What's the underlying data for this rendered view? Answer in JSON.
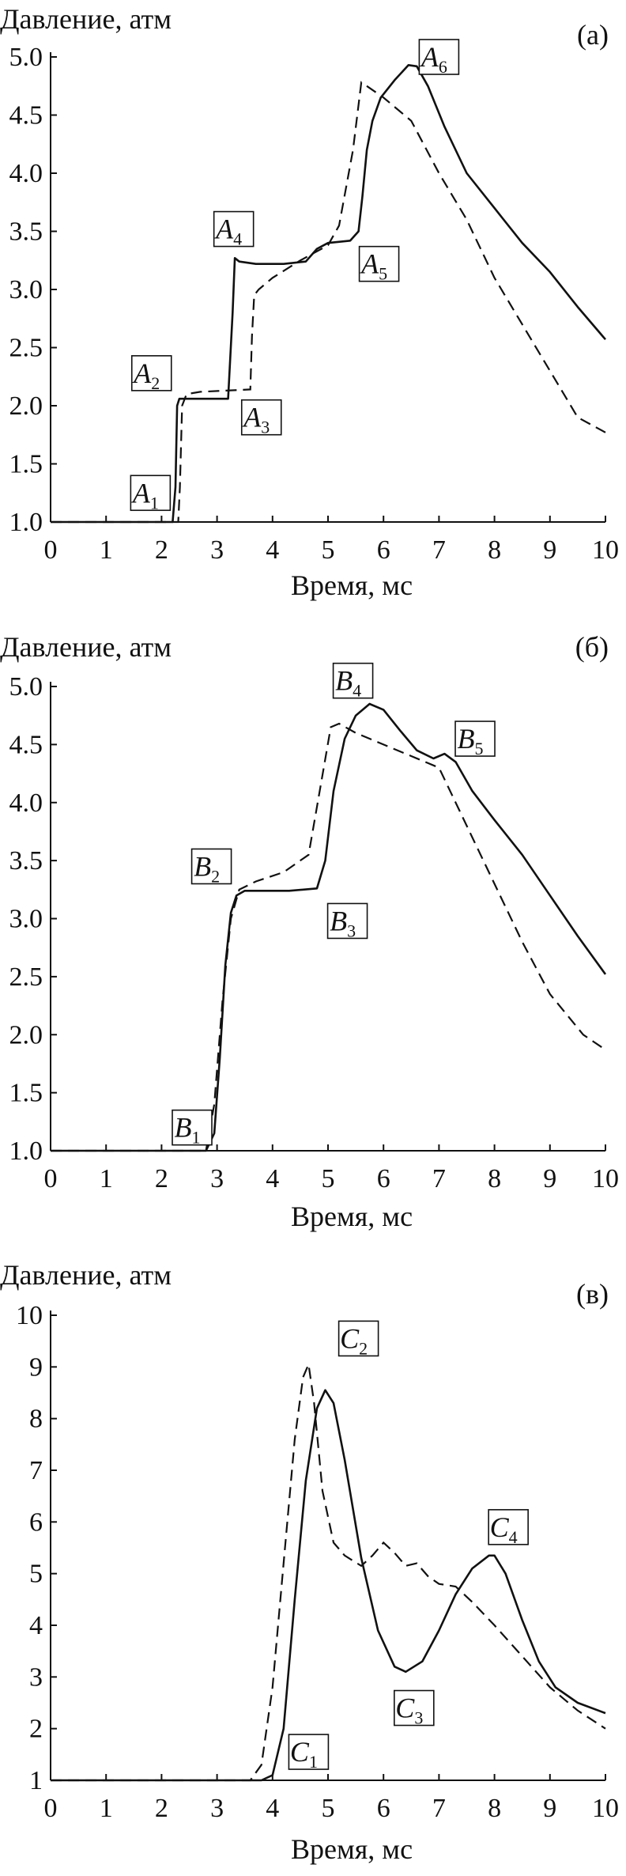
{
  "chart_data": [
    {
      "type": "line",
      "panel_tag": "(а)",
      "ylabel": "Давление, атм",
      "xlabel": "Время, мс",
      "xlim": [
        0,
        10
      ],
      "ylim": [
        1.0,
        5.0
      ],
      "xticks": [
        "0",
        "1",
        "2",
        "3",
        "4",
        "5",
        "6",
        "7",
        "8",
        "9",
        "10"
      ],
      "yticks": [
        "1.0",
        "1.5",
        "2.0",
        "2.5",
        "3.0",
        "3.5",
        "4.0",
        "4.5",
        "5.0"
      ],
      "ytick_values": [
        1.0,
        1.5,
        2.0,
        2.5,
        3.0,
        3.5,
        4.0,
        4.5,
        5.0
      ],
      "series": [
        {
          "style": "solid",
          "x": [
            0,
            2.2,
            2.25,
            2.28,
            2.32,
            2.5,
            3.2,
            3.28,
            3.32,
            3.4,
            3.7,
            4.2,
            4.6,
            4.8,
            5.0,
            5.4,
            5.55,
            5.62,
            5.7,
            5.8,
            5.95,
            6.2,
            6.45,
            6.6,
            6.8,
            7.1,
            7.5,
            8.0,
            8.5,
            9.0,
            9.5,
            10.0
          ],
          "y": [
            1.0,
            1.0,
            1.3,
            2.0,
            2.06,
            2.06,
            2.06,
            2.8,
            3.27,
            3.24,
            3.22,
            3.22,
            3.24,
            3.35,
            3.4,
            3.42,
            3.5,
            3.8,
            4.2,
            4.45,
            4.65,
            4.8,
            4.93,
            4.92,
            4.75,
            4.4,
            4.0,
            3.7,
            3.4,
            3.15,
            2.85,
            2.57
          ]
        },
        {
          "style": "dashed",
          "x": [
            0,
            2.3,
            2.33,
            2.37,
            2.45,
            2.7,
            3.6,
            3.63,
            3.67,
            3.75,
            4.0,
            4.5,
            5.0,
            5.2,
            5.45,
            5.6,
            5.7,
            6.0,
            6.5,
            7.0,
            7.5,
            8.0,
            8.5,
            9.0,
            9.5,
            10.0
          ],
          "y": [
            1.0,
            1.0,
            1.3,
            2.0,
            2.1,
            2.12,
            2.14,
            2.6,
            2.95,
            3.0,
            3.1,
            3.25,
            3.38,
            3.55,
            4.2,
            4.78,
            4.75,
            4.65,
            4.45,
            4.0,
            3.6,
            3.1,
            2.7,
            2.3,
            1.9,
            1.77
          ]
        }
      ],
      "point_labels": [
        {
          "letter": "A",
          "sub": "1",
          "x": 1.8,
          "y": 1.25
        },
        {
          "letter": "A",
          "sub": "2",
          "x": 1.82,
          "y": 2.28
        },
        {
          "letter": "A",
          "sub": "3",
          "x": 3.8,
          "y": 1.9
        },
        {
          "letter": "A",
          "sub": "4",
          "x": 3.3,
          "y": 3.52
        },
        {
          "letter": "A",
          "sub": "5",
          "x": 5.92,
          "y": 3.22
        },
        {
          "letter": "A",
          "sub": "6",
          "x": 7.0,
          "y": 5.0
        }
      ]
    },
    {
      "type": "line",
      "panel_tag": "(б)",
      "ylabel": "Давление, атм",
      "xlabel": "Время, мс",
      "xlim": [
        0,
        10
      ],
      "ylim": [
        1.0,
        5.0
      ],
      "xticks": [
        "0",
        "1",
        "2",
        "3",
        "4",
        "5",
        "6",
        "7",
        "8",
        "9",
        "10"
      ],
      "yticks": [
        "1.0",
        "1.5",
        "2.0",
        "2.5",
        "3.0",
        "3.5",
        "4.0",
        "4.5",
        "5.0"
      ],
      "ytick_values": [
        1.0,
        1.5,
        2.0,
        2.5,
        3.0,
        3.5,
        4.0,
        4.5,
        5.0
      ],
      "series": [
        {
          "style": "solid",
          "x": [
            0,
            2.8,
            2.95,
            3.05,
            3.15,
            3.25,
            3.35,
            3.5,
            3.8,
            4.3,
            4.8,
            4.95,
            5.1,
            5.3,
            5.5,
            5.75,
            6.0,
            6.3,
            6.6,
            6.9,
            7.1,
            7.3,
            7.6,
            8.0,
            8.5,
            9.0,
            9.5,
            10.0
          ],
          "y": [
            1.0,
            1.0,
            1.15,
            1.8,
            2.6,
            3.05,
            3.2,
            3.24,
            3.24,
            3.24,
            3.26,
            3.5,
            4.1,
            4.55,
            4.75,
            4.85,
            4.8,
            4.62,
            4.45,
            4.38,
            4.42,
            4.35,
            4.1,
            3.85,
            3.55,
            3.2,
            2.85,
            2.52
          ]
        },
        {
          "style": "dashed",
          "x": [
            0,
            2.8,
            2.95,
            3.1,
            3.25,
            3.4,
            3.7,
            4.2,
            4.65,
            4.85,
            5.05,
            5.2,
            5.5,
            6.0,
            6.5,
            7.0,
            7.5,
            8.0,
            8.5,
            9.0,
            9.6,
            10.0
          ],
          "y": [
            1.0,
            1.0,
            1.4,
            2.3,
            3.0,
            3.25,
            3.32,
            3.4,
            3.55,
            4.1,
            4.65,
            4.68,
            4.6,
            4.5,
            4.4,
            4.3,
            3.8,
            3.3,
            2.8,
            2.35,
            2.0,
            1.87
          ]
        }
      ],
      "point_labels": [
        {
          "letter": "B",
          "sub": "1",
          "x": 2.55,
          "y": 1.2
        },
        {
          "letter": "B",
          "sub": "2",
          "x": 2.9,
          "y": 3.45
        },
        {
          "letter": "B",
          "sub": "3",
          "x": 5.35,
          "y": 2.98
        },
        {
          "letter": "B",
          "sub": "4",
          "x": 5.45,
          "y": 5.05
        },
        {
          "letter": "B",
          "sub": "5",
          "x": 7.65,
          "y": 4.55
        }
      ]
    },
    {
      "type": "line",
      "panel_tag": "(в)",
      "ylabel": "Давление, атм",
      "xlabel": "Время, мс",
      "xlim": [
        0,
        10
      ],
      "ylim": [
        1,
        10
      ],
      "xticks": [
        "0",
        "1",
        "2",
        "3",
        "4",
        "5",
        "6",
        "7",
        "8",
        "9",
        "10"
      ],
      "yticks": [
        "1",
        "2",
        "3",
        "4",
        "5",
        "6",
        "7",
        "8",
        "9",
        "10"
      ],
      "ytick_values": [
        1,
        2,
        3,
        4,
        5,
        6,
        7,
        8,
        9,
        10
      ],
      "series": [
        {
          "style": "solid",
          "x": [
            0,
            3.8,
            4.0,
            4.2,
            4.4,
            4.6,
            4.8,
            4.95,
            5.1,
            5.3,
            5.6,
            5.9,
            6.2,
            6.4,
            6.7,
            7.0,
            7.3,
            7.6,
            7.9,
            8.0,
            8.2,
            8.5,
            8.8,
            9.1,
            9.5,
            10.0
          ],
          "y": [
            1.0,
            1.0,
            1.1,
            2.0,
            4.5,
            6.8,
            8.2,
            8.55,
            8.3,
            7.2,
            5.3,
            3.9,
            3.2,
            3.1,
            3.3,
            3.9,
            4.6,
            5.1,
            5.35,
            5.35,
            5.0,
            4.1,
            3.3,
            2.8,
            2.5,
            2.3
          ]
        },
        {
          "style": "dashed",
          "x": [
            0,
            3.6,
            3.8,
            4.0,
            4.2,
            4.4,
            4.55,
            4.65,
            4.75,
            4.9,
            5.1,
            5.3,
            5.6,
            5.8,
            6.0,
            6.2,
            6.4,
            6.6,
            6.8,
            7.0,
            7.3,
            7.6,
            8.0,
            8.5,
            9.0,
            9.5,
            10.0
          ],
          "y": [
            1.0,
            1.0,
            1.3,
            2.8,
            5.2,
            7.6,
            8.8,
            9.05,
            8.3,
            6.6,
            5.6,
            5.35,
            5.15,
            5.35,
            5.6,
            5.4,
            5.15,
            5.2,
            4.95,
            4.8,
            4.75,
            4.45,
            4.0,
            3.4,
            2.8,
            2.35,
            2.0
          ]
        }
      ],
      "point_labels": [
        {
          "letter": "C",
          "sub": "1",
          "x": 4.65,
          "y": 1.55
        },
        {
          "letter": "C",
          "sub": "2",
          "x": 5.55,
          "y": 9.55
        },
        {
          "letter": "C",
          "sub": "3",
          "x": 6.55,
          "y": 2.4
        },
        {
          "letter": "C",
          "sub": "4",
          "x": 8.25,
          "y": 5.9
        }
      ]
    }
  ]
}
